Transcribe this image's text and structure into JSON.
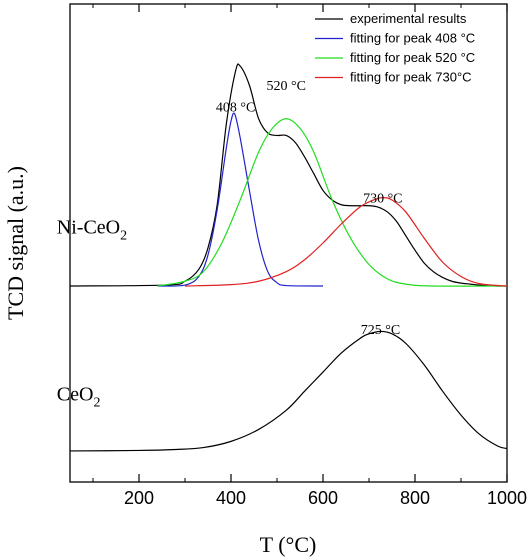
{
  "chart_data": {
    "type": "line",
    "title": "",
    "xlabel": "T (°C)",
    "ylabel": "TCD signal (a.u.)",
    "xlim": [
      50,
      1000
    ],
    "ylim": [
      0,
      1
    ],
    "x_ticks": [
      200,
      400,
      600,
      800,
      1000
    ],
    "x_minor_ticks": [
      100,
      300,
      500,
      700,
      900
    ],
    "y_tick_labels": false,
    "grid": false,
    "legend": {
      "position": "top-right",
      "entries": [
        {
          "label": "experimental results",
          "color": "#000000"
        },
        {
          "label": "fitting for peak 408 °C",
          "color": "#2222cc"
        },
        {
          "label": "fitting for peak 520 °C",
          "color": "#22dd22"
        },
        {
          "label": "fitting for peak 730°C",
          "color": "#e02020"
        }
      ]
    },
    "sample_labels": [
      {
        "text": "Ni-CeO",
        "sub": "2",
        "x": 130,
        "y": 0.52
      },
      {
        "text": "CeO",
        "sub": "2",
        "x": 130,
        "y": 0.17
      }
    ],
    "annotations": [
      {
        "text": "408 °C",
        "x": 410,
        "y": 0.775
      },
      {
        "text": "520 °C",
        "x": 520,
        "y": 0.82
      },
      {
        "text": "730 °C",
        "x": 730,
        "y": 0.585
      },
      {
        "text": "725 °C",
        "x": 725,
        "y": 0.31
      }
    ],
    "series": [
      {
        "name": "experimental results",
        "color": "#000000",
        "x": [
          50,
          260,
          300,
          330,
          350,
          370,
          390,
          410,
          420,
          440,
          460,
          480,
          500,
          520,
          540,
          560,
          580,
          600,
          620,
          640,
          660,
          680,
          700,
          720,
          740,
          760,
          780,
          800,
          820,
          840,
          860,
          880,
          900,
          920,
          940,
          960,
          980,
          1000
        ],
        "y": [
          0.41,
          0.412,
          0.42,
          0.445,
          0.49,
          0.58,
          0.75,
          0.86,
          0.87,
          0.83,
          0.76,
          0.73,
          0.725,
          0.725,
          0.71,
          0.68,
          0.645,
          0.61,
          0.59,
          0.58,
          0.578,
          0.578,
          0.578,
          0.575,
          0.565,
          0.545,
          0.515,
          0.485,
          0.458,
          0.44,
          0.428,
          0.42,
          0.416,
          0.414,
          0.412,
          0.411,
          0.41,
          0.41
        ]
      },
      {
        "name": "fitting for peak 408 °C",
        "color": "#2222cc",
        "x": [
          240,
          300,
          330,
          350,
          370,
          390,
          400,
          408,
          420,
          440,
          460,
          480,
          500,
          520,
          600
        ],
        "y": [
          0.41,
          0.412,
          0.43,
          0.475,
          0.57,
          0.7,
          0.755,
          0.77,
          0.72,
          0.61,
          0.505,
          0.44,
          0.417,
          0.411,
          0.41
        ]
      },
      {
        "name": "fitting for peak 520 °C",
        "color": "#22dd22",
        "x": [
          240,
          300,
          340,
          380,
          420,
          460,
          490,
          520,
          550,
          580,
          620,
          660,
          700,
          740,
          780,
          840,
          1000
        ],
        "y": [
          0.41,
          0.42,
          0.44,
          0.5,
          0.59,
          0.69,
          0.74,
          0.76,
          0.74,
          0.69,
          0.59,
          0.51,
          0.455,
          0.425,
          0.414,
          0.41,
          0.41
        ]
      },
      {
        "name": "fitting for peak 730°C",
        "color": "#e02020",
        "x": [
          300,
          400,
          460,
          520,
          560,
          600,
          640,
          680,
          710,
          730,
          750,
          780,
          820,
          860,
          900,
          940,
          1000
        ],
        "y": [
          0.41,
          0.413,
          0.42,
          0.44,
          0.465,
          0.5,
          0.54,
          0.575,
          0.59,
          0.595,
          0.59,
          0.565,
          0.51,
          0.46,
          0.43,
          0.415,
          0.41
        ]
      },
      {
        "name": "",
        "color": "#000000",
        "x": [
          50,
          200,
          280,
          340,
          400,
          460,
          520,
          560,
          600,
          640,
          680,
          700,
          725,
          750,
          780,
          820,
          860,
          900,
          940,
          980,
          1000
        ],
        "y": [
          0.065,
          0.066,
          0.068,
          0.072,
          0.085,
          0.11,
          0.15,
          0.19,
          0.23,
          0.27,
          0.3,
          0.31,
          0.315,
          0.31,
          0.29,
          0.245,
          0.19,
          0.14,
          0.1,
          0.075,
          0.07
        ]
      }
    ]
  }
}
